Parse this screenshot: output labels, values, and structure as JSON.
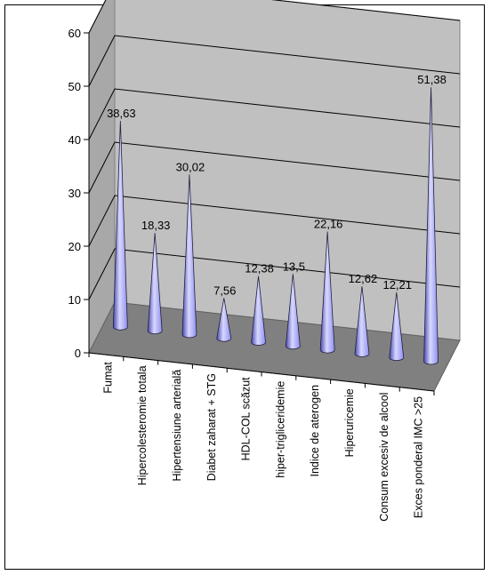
{
  "chart_data": {
    "type": "bar",
    "style": "3d-cone",
    "categories": [
      "Fumat",
      "Hipercolesteromie totala",
      "Hipertensiune arterială",
      "Diabet zaharat + STG",
      "HDL-COL scăzut",
      "hiper-trigliceridemie",
      "Indice de aterogen",
      "Hiperuricemie",
      "Consum excesiv de alcool",
      "Exces ponderal IMC >25"
    ],
    "values": [
      38.63,
      18.33,
      30.02,
      7.56,
      12.38,
      13.5,
      22.16,
      12.62,
      12.21,
      51.38
    ],
    "data_labels": [
      "38,63",
      "18,33",
      "30,02",
      "7,56",
      "12,38",
      "13,5",
      "22,16",
      "12,62",
      "12,21",
      "51,38"
    ],
    "y_ticks": [
      "0",
      "10",
      "20",
      "30",
      "40",
      "50",
      "60"
    ],
    "ylim": [
      0,
      60
    ],
    "grid": true,
    "legend": "none",
    "colors": {
      "cone": "#8f8fef",
      "cone_light": "#d8d8ff",
      "cone_dark": "#4a4ab0",
      "back_wall": "#c0c0c0",
      "side_wall": "#a8a8a8",
      "floor": "#808080",
      "gridline": "#000000"
    }
  }
}
